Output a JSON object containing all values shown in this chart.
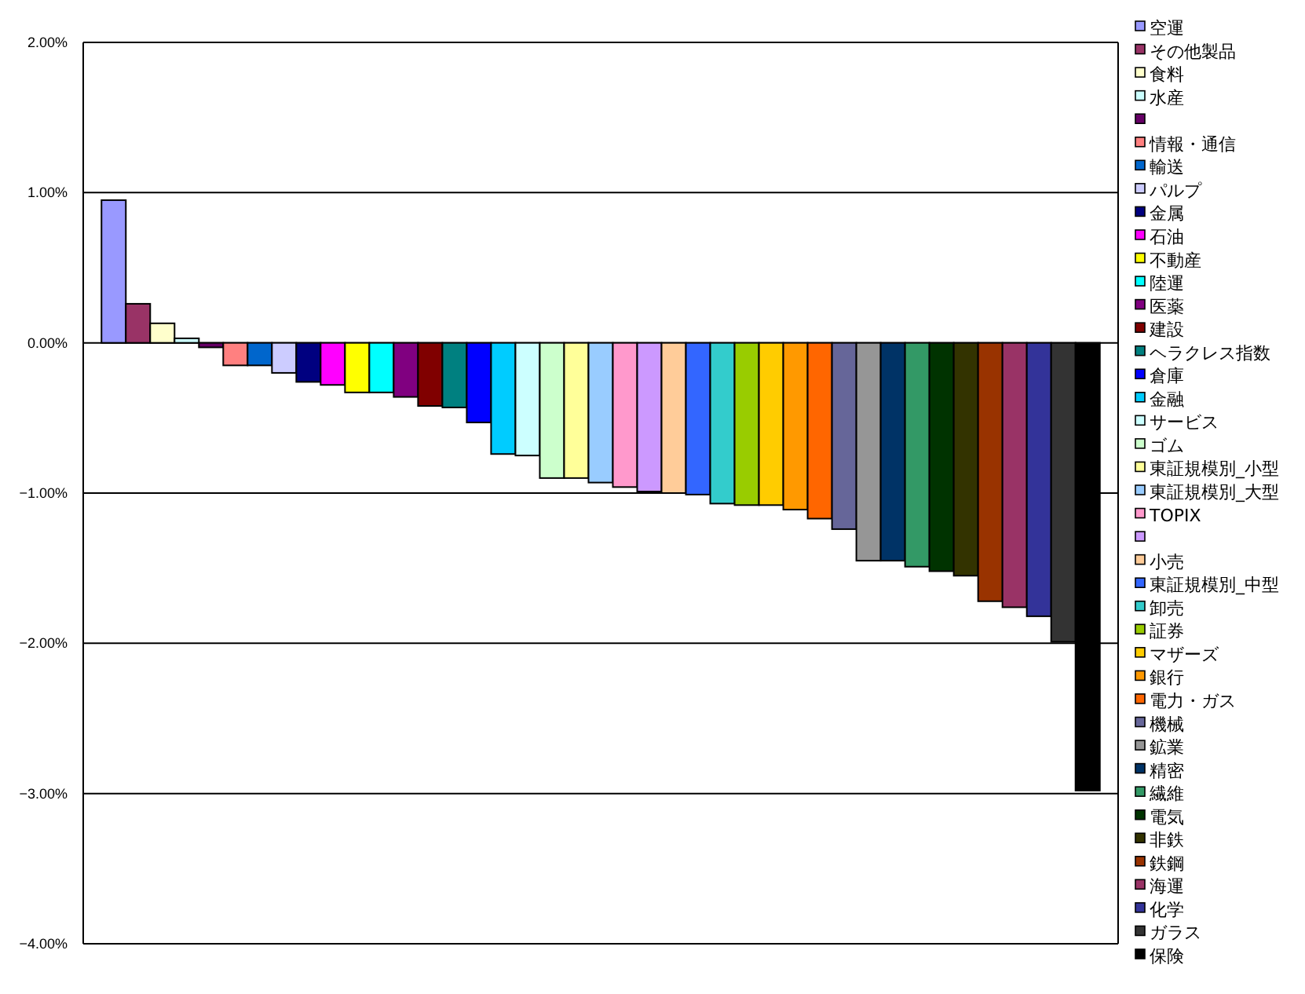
{
  "chart_data": {
    "type": "bar",
    "categories": [
      null
    ],
    "ylim": [
      -4,
      2
    ],
    "yticks": [
      {
        "value": 2,
        "label": "2.00%"
      },
      {
        "value": 1,
        "label": "1.00%"
      },
      {
        "value": 0,
        "label": "0.00%"
      },
      {
        "value": -1,
        "label": "−1.00%"
      },
      {
        "value": -2,
        "label": "−2.00%"
      },
      {
        "value": -3,
        "label": "−3.00%"
      },
      {
        "value": -4,
        "label": "−4.00%"
      }
    ],
    "grid": "y",
    "legend": "right",
    "series": [
      {
        "name": "空運",
        "color": "#9999ff",
        "values": [
          0.95
        ]
      },
      {
        "name": "その他製品",
        "color": "#993366",
        "values": [
          0.26
        ]
      },
      {
        "name": "食料",
        "color": "#ffffcc",
        "values": [
          0.13
        ]
      },
      {
        "name": "水産",
        "color": "#ccffff",
        "values": [
          0.03
        ]
      },
      {
        "color": "#660066",
        "values": [
          -0.03
        ]
      },
      {
        "name": "情報・通信",
        "color": "#ff8080",
        "values": [
          -0.15
        ]
      },
      {
        "name": "輸送",
        "color": "#0066cc",
        "values": [
          -0.15
        ]
      },
      {
        "name": "パルプ",
        "color": "#ccccff",
        "values": [
          -0.2
        ]
      },
      {
        "name": "金属",
        "color": "#000080",
        "values": [
          -0.26
        ]
      },
      {
        "name": "石油",
        "color": "#ff00ff",
        "values": [
          -0.28
        ]
      },
      {
        "name": "不動産",
        "color": "#ffff00",
        "values": [
          -0.33
        ]
      },
      {
        "name": "陸運",
        "color": "#00ffff",
        "values": [
          -0.33
        ]
      },
      {
        "name": "医薬",
        "color": "#800080",
        "values": [
          -0.36
        ]
      },
      {
        "name": "建設",
        "color": "#800000",
        "values": [
          -0.42
        ]
      },
      {
        "name": "ヘラクレス指数",
        "color": "#008080",
        "values": [
          -0.43
        ]
      },
      {
        "name": "倉庫",
        "color": "#0000ff",
        "values": [
          -0.53
        ]
      },
      {
        "name": "金融",
        "color": "#00ccff",
        "values": [
          -0.74
        ]
      },
      {
        "name": "サービス",
        "color": "#ccffff",
        "values": [
          -0.75
        ]
      },
      {
        "name": "ゴム",
        "color": "#ccffcc",
        "values": [
          -0.9
        ]
      },
      {
        "name": "東証規模別_小型",
        "color": "#ffff99",
        "values": [
          -0.9
        ]
      },
      {
        "name": "東証規模別_大型",
        "color": "#99ccff",
        "values": [
          -0.93
        ]
      },
      {
        "name": "TOPIX",
        "color": "#ff99cc",
        "values": [
          -0.96
        ]
      },
      {
        "color": "#cc99ff",
        "values": [
          -0.99
        ]
      },
      {
        "name": "小売",
        "color": "#ffcc99",
        "values": [
          -1.0
        ]
      },
      {
        "name": "東証規模別_中型",
        "color": "#3366ff",
        "values": [
          -1.01
        ]
      },
      {
        "name": "卸売",
        "color": "#33cccc",
        "values": [
          -1.07
        ]
      },
      {
        "name": "証券",
        "color": "#99cc00",
        "values": [
          -1.08
        ]
      },
      {
        "name": "マザーズ",
        "color": "#ffcc00",
        "values": [
          -1.08
        ]
      },
      {
        "name": "銀行",
        "color": "#ff9900",
        "values": [
          -1.11
        ]
      },
      {
        "name": "電力・ガス",
        "color": "#ff6600",
        "values": [
          -1.17
        ]
      },
      {
        "name": "機械",
        "color": "#666699",
        "values": [
          -1.24
        ]
      },
      {
        "name": "鉱業",
        "color": "#969696",
        "values": [
          -1.45
        ]
      },
      {
        "name": "精密",
        "color": "#003366",
        "values": [
          -1.45
        ]
      },
      {
        "name": "繊維",
        "color": "#339966",
        "values": [
          -1.49
        ]
      },
      {
        "name": "電気",
        "color": "#003300",
        "values": [
          -1.52
        ]
      },
      {
        "name": "非鉄",
        "color": "#333300",
        "values": [
          -1.55
        ]
      },
      {
        "name": "鉄鋼",
        "color": "#993300",
        "values": [
          -1.72
        ]
      },
      {
        "name": "海運",
        "color": "#993366",
        "values": [
          -1.76
        ]
      },
      {
        "name": "化学",
        "color": "#333399",
        "values": [
          -1.82
        ]
      },
      {
        "name": "ガラス",
        "color": "#333333",
        "values": [
          -1.99
        ]
      },
      {
        "name": "保険",
        "color": "#000000",
        "values": [
          -2.98
        ]
      }
    ]
  }
}
